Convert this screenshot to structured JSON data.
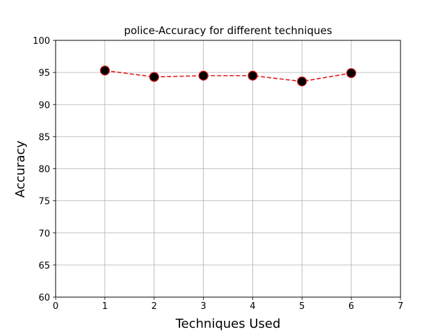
{
  "chart_data": {
    "type": "line",
    "title": "police-Accuracy for different techniques",
    "xlabel": "Techniques Used",
    "ylabel": "Accuracy",
    "xlim": [
      0,
      7
    ],
    "ylim": [
      60,
      100
    ],
    "xticks": [
      0,
      1,
      2,
      3,
      4,
      5,
      6,
      7
    ],
    "yticks": [
      60,
      65,
      70,
      75,
      80,
      85,
      90,
      95,
      100
    ],
    "grid": true,
    "series": [
      {
        "x": [
          1,
          2,
          3,
          4,
          5,
          6
        ],
        "values": [
          95.3,
          94.3,
          94.5,
          94.5,
          93.6,
          94.9
        ],
        "line_color": "#e31a1c",
        "line_style": "dashed",
        "marker": "circle",
        "marker_fill": "#000000",
        "marker_edge": "#e31a1c"
      }
    ]
  }
}
